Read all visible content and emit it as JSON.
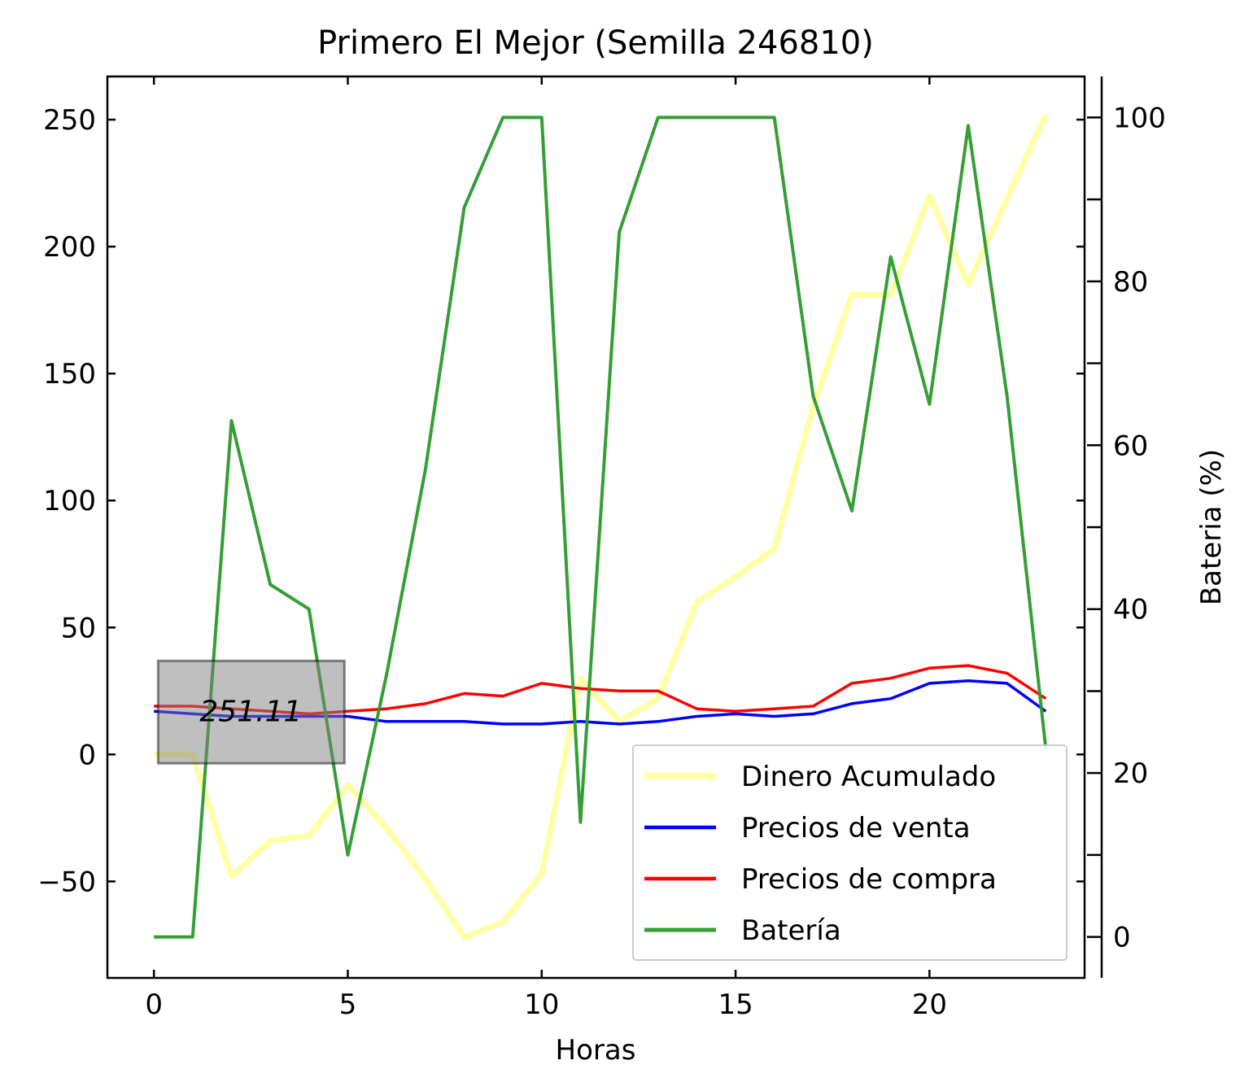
{
  "chart_data": {
    "type": "line",
    "title": "Primero El Mejor (Semilla 246810)",
    "xlabel": "Horas",
    "ylabel": "",
    "y2label": "Bateria (%)",
    "xlim": [
      -1.2,
      24.0
    ],
    "ylim": [
      -88,
      267
    ],
    "y2lim": [
      -5,
      105
    ],
    "xticks": [
      0,
      5,
      10,
      15,
      20
    ],
    "yticks": [
      -50,
      0,
      50,
      100,
      150,
      200,
      250
    ],
    "y2ticks": [
      0,
      20,
      40,
      60,
      80,
      100
    ],
    "ytick_labels": [
      "−50",
      "0",
      "50",
      "100",
      "150",
      "200",
      "250"
    ],
    "grid": false,
    "legend_position": "lower-right",
    "x": [
      0,
      1,
      2,
      3,
      4,
      5,
      6,
      7,
      8,
      9,
      10,
      11,
      12,
      13,
      14,
      15,
      16,
      17,
      18,
      19,
      20,
      21,
      22,
      23
    ],
    "series": [
      {
        "name": "Dinero Acumulado",
        "axis": "left",
        "color": "#ffff66",
        "values": [
          0,
          0,
          -48,
          -34,
          -32,
          -12,
          -29,
          -49,
          -72,
          -66,
          -47,
          30,
          13,
          22,
          60,
          70,
          81,
          137,
          181,
          181,
          220,
          185,
          219,
          252
        ]
      },
      {
        "name": "Precios de venta",
        "axis": "left",
        "color": "#0000ff",
        "values": [
          17,
          16,
          15,
          15,
          15,
          15,
          13,
          13,
          13,
          12,
          12,
          13,
          12,
          13,
          15,
          16,
          15,
          16,
          20,
          22,
          28,
          29,
          28,
          17
        ]
      },
      {
        "name": "Precios de compra",
        "axis": "left",
        "color": "#ff0000",
        "values": [
          19,
          19,
          18,
          17,
          16,
          17,
          18,
          20,
          24,
          23,
          28,
          26,
          25,
          25,
          18,
          17,
          18,
          19,
          28,
          30,
          34,
          35,
          32,
          22
        ]
      },
      {
        "name": "Batería",
        "axis": "right",
        "color": "#2a9a2a",
        "values": [
          0,
          0,
          63,
          43,
          40,
          10,
          32,
          57,
          89,
          100,
          100,
          14,
          86,
          100,
          100,
          100,
          100,
          66,
          52,
          83,
          65,
          99,
          66,
          23
        ]
      }
    ],
    "annotations": [
      {
        "text": "251.11",
        "x": 2.5,
        "y": 17
      }
    ]
  }
}
